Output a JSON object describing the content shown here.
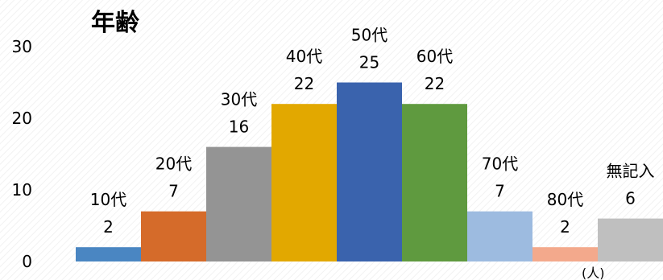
{
  "chart_data": {
    "type": "bar",
    "title": "年齢",
    "unit": "(人)",
    "categories": [
      "10代",
      "20代",
      "30代",
      "40代",
      "50代",
      "60代",
      "70代",
      "80代",
      "無記入"
    ],
    "values": [
      2,
      7,
      16,
      22,
      25,
      22,
      7,
      2,
      6
    ],
    "colors": [
      "#4a86c2",
      "#d56b2a",
      "#949494",
      "#e2a800",
      "#3a63ad",
      "#5f9a3f",
      "#9dbbe0",
      "#f3a98c",
      "#bfbfbf"
    ],
    "ylim": [
      0,
      30
    ],
    "yticks": [
      0,
      10,
      20,
      30
    ],
    "xlabel": "",
    "ylabel": "",
    "grid": false,
    "legend": "none"
  }
}
